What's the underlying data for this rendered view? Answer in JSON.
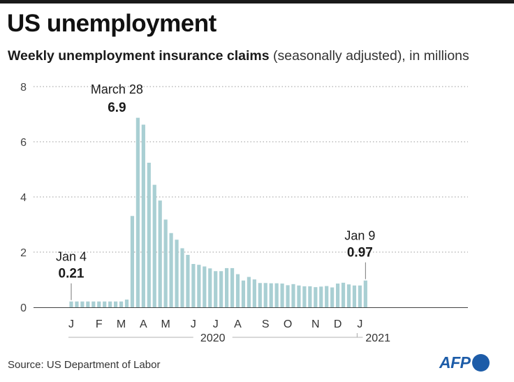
{
  "header": {
    "title": "US unemployment",
    "subtitle_bold": "Weekly unemployment insurance claims",
    "subtitle_rest": " (seasonally adjusted), in millions"
  },
  "footer": {
    "source": "Source: US Department of Labor",
    "logo_text": "AFP"
  },
  "colors": {
    "bar": "#a9cfd3",
    "grid": "#9a9a9a",
    "axis": "#444444",
    "logo": "#1d5ca8"
  },
  "chart_data": {
    "type": "bar",
    "title": "US unemployment",
    "subtitle": "Weekly unemployment insurance claims (seasonally adjusted), in millions",
    "xlabel": "",
    "ylabel": "",
    "ylim": [
      0,
      8
    ],
    "yticks": [
      "0",
      "2",
      "4",
      "6",
      "8"
    ],
    "grid": true,
    "x_start_index": 1,
    "month_labels": [
      {
        "label": "J",
        "index": 1
      },
      {
        "label": "F",
        "index": 6
      },
      {
        "label": "M",
        "index": 10
      },
      {
        "label": "A",
        "index": 14
      },
      {
        "label": "M",
        "index": 18
      },
      {
        "label": "J",
        "index": 23
      },
      {
        "label": "J",
        "index": 27
      },
      {
        "label": "A",
        "index": 31
      },
      {
        "label": "S",
        "index": 36
      },
      {
        "label": "O",
        "index": 40
      },
      {
        "label": "N",
        "index": 45
      },
      {
        "label": "D",
        "index": 49
      },
      {
        "label": "J",
        "index": 53
      }
    ],
    "year_labels": [
      {
        "label": "2020",
        "from_index": 1,
        "to_index": 52
      },
      {
        "label": "2021",
        "from_index": 53,
        "to_index": 54
      }
    ],
    "values": [
      0.21,
      0.21,
      0.21,
      0.21,
      0.21,
      0.21,
      0.21,
      0.21,
      0.21,
      0.21,
      0.28,
      3.31,
      6.87,
      6.62,
      5.24,
      4.44,
      3.87,
      3.18,
      2.69,
      2.45,
      2.14,
      1.9,
      1.57,
      1.54,
      1.48,
      1.41,
      1.31,
      1.31,
      1.42,
      1.42,
      1.2,
      0.97,
      1.1,
      1.01,
      0.88,
      0.88,
      0.87,
      0.87,
      0.86,
      0.8,
      0.84,
      0.79,
      0.76,
      0.76,
      0.73,
      0.75,
      0.77,
      0.72,
      0.86,
      0.89,
      0.83,
      0.79,
      0.79,
      0.97
    ],
    "annotations": [
      {
        "index": 1,
        "label": "Jan 4",
        "value_text": "0.21"
      },
      {
        "index": 13,
        "label": "March 28",
        "value_text": "6.9"
      },
      {
        "index": 54,
        "label": "Jan 9",
        "value_text": "0.97"
      }
    ]
  }
}
